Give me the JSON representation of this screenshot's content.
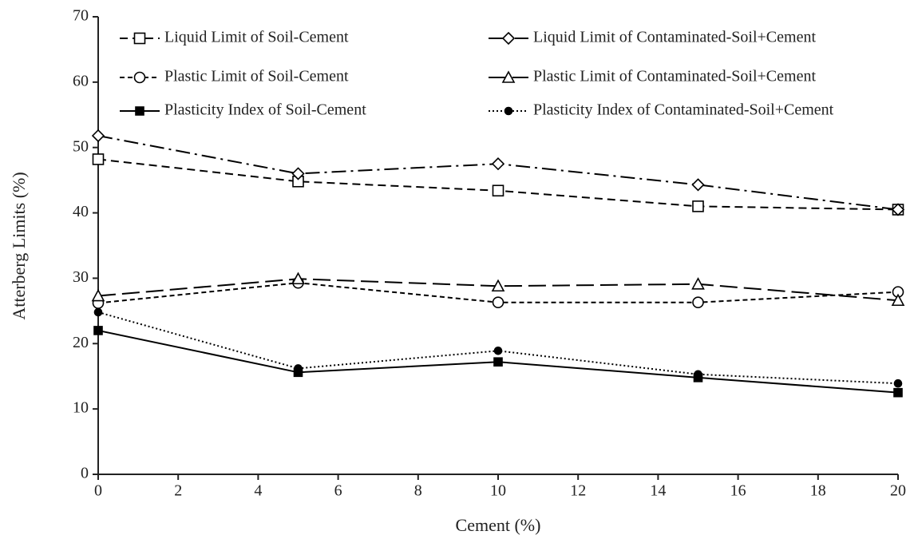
{
  "chart_data": {
    "type": "line",
    "x_label": "Cement (%)",
    "y_label": "Atterberg Limits (%)",
    "x": [
      0,
      5,
      10,
      15,
      20
    ],
    "xlim": [
      0,
      20
    ],
    "xticks": [
      0,
      2,
      4,
      6,
      8,
      10,
      12,
      14,
      16,
      18,
      20
    ],
    "ylim": [
      0,
      70
    ],
    "yticks": [
      0,
      10,
      20,
      30,
      40,
      50,
      60,
      70
    ],
    "series": [
      {
        "name": "Liquid Limit of Soil-Cement",
        "color": "#000000",
        "marker": "square-open",
        "dash": "10,6",
        "values": [
          48.2,
          44.8,
          43.4,
          41.0,
          40.5
        ]
      },
      {
        "name": "Liquid Limit of Contaminated-Soil+Cement",
        "color": "#000000",
        "marker": "diamond-open",
        "dash": "18,6,3,6",
        "values": [
          51.8,
          46.0,
          47.5,
          44.3,
          40.5
        ]
      },
      {
        "name": "Plastic Limit of Soil-Cement",
        "color": "#000000",
        "marker": "circle-open",
        "dash": "6,4",
        "values": [
          26.2,
          29.3,
          26.3,
          26.3,
          27.9
        ]
      },
      {
        "name": "Plastic Limit of Contaminated-Soil+Cement",
        "color": "#000000",
        "marker": "triangle-open",
        "dash": "22,8",
        "values": [
          27.3,
          29.9,
          28.8,
          29.1,
          26.6
        ]
      },
      {
        "name": "Plasticity Index of Soil-Cement",
        "color": "#000000",
        "marker": "square-filled",
        "dash": "none",
        "values": [
          22.0,
          15.6,
          17.2,
          14.8,
          12.5
        ]
      },
      {
        "name": "Plasticity Index of Contaminated-Soil+Cement",
        "color": "#000000",
        "marker": "circle-filled",
        "dash": "2,3",
        "values": [
          24.8,
          16.2,
          18.9,
          15.3,
          13.9
        ]
      }
    ]
  }
}
